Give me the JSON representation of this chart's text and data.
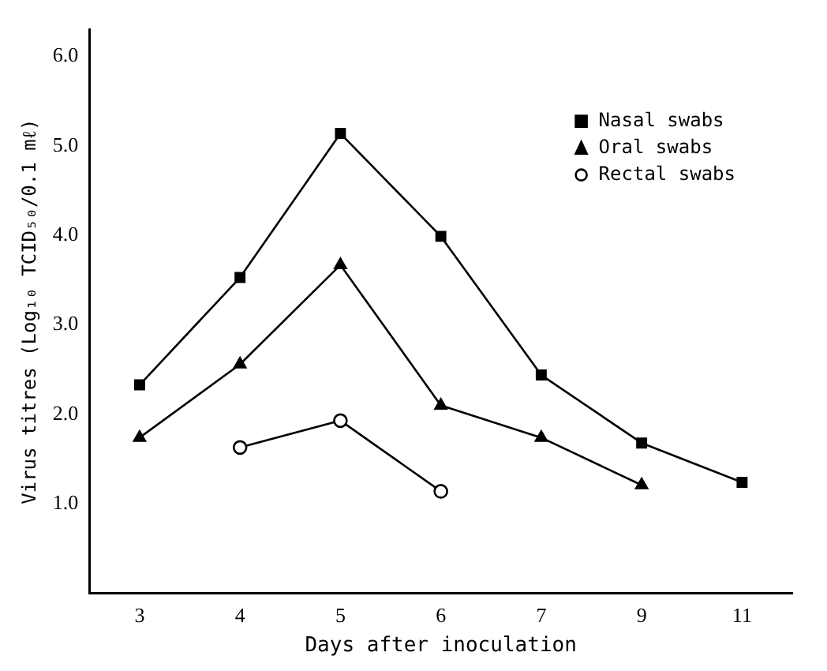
{
  "chart_data": {
    "type": "line",
    "xlabel": "Days after inoculation",
    "ylabel": "Virus titres (Log₁₀ TCID₅₀/0.1 mℓ)",
    "categories": [
      "3",
      "4",
      "5",
      "6",
      "7",
      "9",
      "11"
    ],
    "series": [
      {
        "name": "Nasal swabs",
        "color": "#000000",
        "marker": "square",
        "values": [
          2.33,
          3.53,
          5.14,
          3.99,
          2.44,
          1.68,
          1.24
        ]
      },
      {
        "name": "Oral swabs",
        "color": "#000000",
        "marker": "triangle",
        "values": [
          1.74,
          2.56,
          3.67,
          2.1,
          1.74,
          1.21,
          null
        ]
      },
      {
        "name": "Rectal swabs",
        "color": "#000000",
        "marker": "circle",
        "values": [
          null,
          1.63,
          1.93,
          1.14,
          null,
          null,
          null
        ]
      }
    ],
    "ylim": [
      0,
      6.3
    ],
    "yticks": [
      {
        "value": 1,
        "label": "1.0"
      },
      {
        "value": 2,
        "label": "2.0"
      },
      {
        "value": 3,
        "label": "3.0"
      },
      {
        "value": 4,
        "label": "4.0"
      },
      {
        "value": 5,
        "label": "5.0"
      },
      {
        "value": 6,
        "label": "6.0"
      }
    ],
    "grid": false,
    "legend": "top right",
    "line_style": "solid"
  }
}
